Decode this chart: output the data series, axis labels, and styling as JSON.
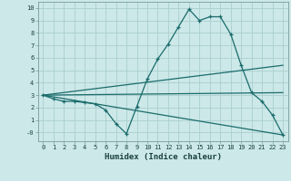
{
  "xlabel": "Humidex (Indice chaleur)",
  "background_color": "#cce8e8",
  "grid_color": "#aacece",
  "line_color": "#1a6b6b",
  "xlim": [
    -0.5,
    23.5
  ],
  "ylim": [
    -0.7,
    10.5
  ],
  "xticks": [
    0,
    1,
    2,
    3,
    4,
    5,
    6,
    7,
    8,
    9,
    10,
    11,
    12,
    13,
    14,
    15,
    16,
    17,
    18,
    19,
    20,
    21,
    22,
    23
  ],
  "yticks": [
    0,
    1,
    2,
    3,
    4,
    5,
    6,
    7,
    8,
    9,
    10
  ],
  "ytick_labels": [
    "-0",
    "1",
    "2",
    "3",
    "4",
    "5",
    "6",
    "7",
    "8",
    "9",
    "10"
  ],
  "line1_x": [
    0,
    1,
    2,
    3,
    4,
    5,
    6,
    7,
    8,
    9,
    10,
    11,
    12,
    13,
    14,
    15,
    16,
    17,
    18,
    19,
    20,
    21,
    22,
    23
  ],
  "line1_y": [
    3.0,
    2.7,
    2.5,
    2.5,
    2.4,
    2.3,
    1.8,
    0.7,
    -0.1,
    2.1,
    4.3,
    5.9,
    7.1,
    8.5,
    9.9,
    9.0,
    9.3,
    9.3,
    7.9,
    5.4,
    3.2,
    2.5,
    1.4,
    -0.2
  ],
  "line2_x": [
    0,
    23
  ],
  "line2_y": [
    3.0,
    -0.2
  ],
  "line3_x": [
    0,
    23
  ],
  "line3_y": [
    3.0,
    5.4
  ],
  "line4_x": [
    0,
    23
  ],
  "line4_y": [
    3.0,
    3.2
  ],
  "xlabel_fontsize": 6.5,
  "tick_fontsize": 5.0
}
